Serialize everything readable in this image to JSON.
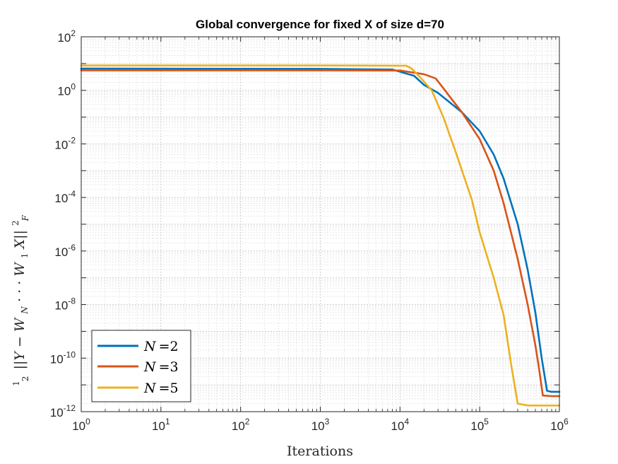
{
  "chart_data": {
    "type": "line",
    "title": "Global convergence for fixed X of size d=70",
    "xlabel": "Iterations",
    "ylabel_parts": [
      "1",
      "2",
      "||Y − W",
      "N",
      " · · · W",
      "1",
      "X||",
      "2",
      "F"
    ],
    "xscale": "log",
    "yscale": "log",
    "xlim": [
      1,
      1000000
    ],
    "ylim": [
      1e-12,
      100
    ],
    "x_ticks": [
      {
        "base": "10",
        "exp": "0",
        "value": 1
      },
      {
        "base": "10",
        "exp": "1",
        "value": 10
      },
      {
        "base": "10",
        "exp": "2",
        "value": 100
      },
      {
        "base": "10",
        "exp": "3",
        "value": 1000
      },
      {
        "base": "10",
        "exp": "4",
        "value": 10000
      },
      {
        "base": "10",
        "exp": "5",
        "value": 100000
      },
      {
        "base": "10",
        "exp": "6",
        "value": 1000000
      }
    ],
    "y_ticks": [
      {
        "base": "10",
        "exp": "2",
        "value": 100
      },
      {
        "base": "10",
        "exp": "0",
        "value": 1
      },
      {
        "base": "10",
        "exp": "-2",
        "value": 0.01
      },
      {
        "base": "10",
        "exp": "-4",
        "value": 0.0001
      },
      {
        "base": "10",
        "exp": "-6",
        "value": 1e-06
      },
      {
        "base": "10",
        "exp": "-8",
        "value": 1e-08
      },
      {
        "base": "10",
        "exp": "-10",
        "value": 1e-10
      },
      {
        "base": "10",
        "exp": "-12",
        "value": 1e-12
      }
    ],
    "grid": true,
    "minor_grid": true,
    "legend_position": "bottom-left",
    "series": [
      {
        "name": "N =2",
        "legend_var": "N",
        "legend_val": "=2",
        "color": "#0072BD",
        "points": [
          [
            1,
            6.5
          ],
          [
            1000,
            6.3
          ],
          [
            8000,
            6.0
          ],
          [
            15000,
            3.5
          ],
          [
            20000,
            1.6
          ],
          [
            30000,
            0.8
          ],
          [
            40000,
            0.4
          ],
          [
            60000,
            0.15
          ],
          [
            100000,
            0.03
          ],
          [
            150000,
            0.004
          ],
          [
            200000,
            0.0005
          ],
          [
            300000,
            1e-05
          ],
          [
            400000,
            2e-07
          ],
          [
            500000,
            5e-09
          ],
          [
            600000,
            1e-10
          ],
          [
            700000,
            6e-12
          ],
          [
            800000,
            5.5e-12
          ],
          [
            1000000,
            5.5e-12
          ]
        ]
      },
      {
        "name": "N =3",
        "legend_var": "N",
        "legend_val": "=3",
        "color": "#D95319",
        "points": [
          [
            1,
            5.6
          ],
          [
            1000,
            5.6
          ],
          [
            10000,
            5.5
          ],
          [
            20000,
            4.0
          ],
          [
            28000,
            2.8
          ],
          [
            35000,
            1.2
          ],
          [
            45000,
            0.45
          ],
          [
            60000,
            0.15
          ],
          [
            100000,
            0.015
          ],
          [
            150000,
            0.001
          ],
          [
            200000,
            6e-05
          ],
          [
            300000,
            5e-07
          ],
          [
            400000,
            1e-08
          ],
          [
            500000,
            3e-10
          ],
          [
            550000,
            5e-11
          ],
          [
            620000,
            4e-12
          ],
          [
            800000,
            3.8e-12
          ],
          [
            1000000,
            3.8e-12
          ]
        ]
      },
      {
        "name": "N =5",
        "legend_var": "N",
        "legend_val": "=5",
        "color": "#EDB120",
        "points": [
          [
            1,
            8.5
          ],
          [
            1000,
            8.5
          ],
          [
            12000,
            8.3
          ],
          [
            14000,
            6.5
          ],
          [
            18000,
            3.0
          ],
          [
            25000,
            1.0
          ],
          [
            35000,
            0.1
          ],
          [
            50000,
            0.005
          ],
          [
            80000,
            8e-05
          ],
          [
            100000,
            5e-06
          ],
          [
            150000,
            1e-07
          ],
          [
            200000,
            4e-09
          ],
          [
            250000,
            5e-11
          ],
          [
            300000,
            2e-12
          ],
          [
            400000,
            1.7e-12
          ],
          [
            1000000,
            1.7e-12
          ]
        ]
      }
    ]
  }
}
